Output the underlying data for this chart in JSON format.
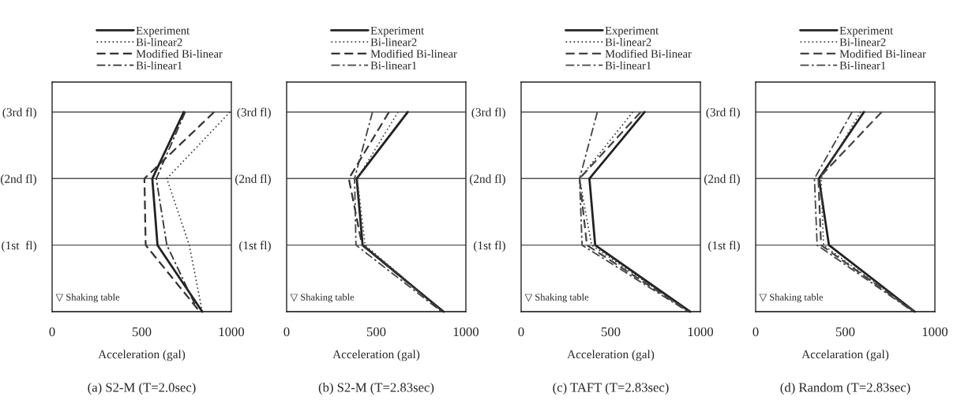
{
  "chart_data": [
    {
      "type": "line",
      "orientation": "horizontal",
      "title": "(a) S2-M (T=2.0sec)",
      "xlabel": "Acceleration (gal)",
      "categories": [
        "(3rd fl)",
        "(2nd fl)",
        "(1st  fl)",
        null
      ],
      "xlim": [
        0,
        1000
      ],
      "xticks": [
        0,
        500,
        1000
      ],
      "grid": "y",
      "legend": "top",
      "annotations": [
        "▽ Shaking table"
      ],
      "series": [
        {
          "name": "Experiment",
          "color": "#222222",
          "line_style": "solid",
          "values": [
            735,
            559,
            588,
            838
          ]
        },
        {
          "name": "Bi-linear2",
          "color": "#333333",
          "line_style": "dotted",
          "values": [
            993,
            640,
            765,
            838
          ]
        },
        {
          "name": "Modified Bi-linear",
          "color": "#333333",
          "line_style": "dashed",
          "values": [
            904,
            515,
            522,
            824
          ]
        },
        {
          "name": "Bi-linear1",
          "color": "#333333",
          "line_style": "dashdot",
          "values": [
            743,
            581,
            640,
            816
          ]
        }
      ]
    },
    {
      "type": "line",
      "orientation": "horizontal",
      "title": "(b) S2-M (T=2.83sec)",
      "xlabel": "Acceleration (gal)",
      "categories": [
        "(3rd fl)",
        "(2nd fl)",
        "(1st fl)",
        null
      ],
      "xlim": [
        0,
        1000
      ],
      "xticks": [
        0,
        500,
        1000
      ],
      "grid": "y",
      "legend": "top",
      "annotations": [
        "▽ Shaking table"
      ],
      "series": [
        {
          "name": "Experiment",
          "color": "#222222",
          "line_style": "solid",
          "values": [
            676,
            391,
            424,
            876
          ]
        },
        {
          "name": "Bi-linear2",
          "color": "#444444",
          "line_style": "dotted",
          "values": [
            622,
            394,
            438,
            872
          ]
        },
        {
          "name": "Modified Bi-linear",
          "color": "#333333",
          "line_style": "dashed",
          "values": [
            571,
            347,
            421,
            872
          ]
        },
        {
          "name": "Bi-linear1",
          "color": "#444444",
          "line_style": "dashdot",
          "values": [
            479,
            379,
            387,
            865
          ]
        }
      ]
    },
    {
      "type": "line",
      "orientation": "horizontal",
      "title": "(c) TAFT (T=2.83sec)",
      "xlabel": "Acceleration (gal)",
      "categories": [
        "(3rd fl)",
        "(2nd fl)",
        "(1st fl)",
        null
      ],
      "xlim": [
        0,
        1000
      ],
      "xticks": [
        0,
        500,
        1000
      ],
      "grid": "y",
      "legend": "top",
      "annotations": [
        "▽ Shaking table"
      ],
      "series": [
        {
          "name": "Experiment",
          "color": "#222222",
          "line_style": "solid",
          "values": [
            689,
            381,
            413,
            943
          ]
        },
        {
          "name": "Bi-linear2",
          "color": "#333333",
          "line_style": "dotted",
          "values": [
            623,
            326,
            393,
            938
          ]
        },
        {
          "name": "Modified Bi-linear",
          "color": "#444444",
          "line_style": "dashed",
          "values": [
            667,
            326,
            367,
            938
          ]
        },
        {
          "name": "Bi-linear1",
          "color": "#444444",
          "line_style": "dashdot",
          "values": [
            425,
            326,
            340,
            931
          ]
        }
      ]
    },
    {
      "type": "line",
      "orientation": "horizontal",
      "title": "(d) Random (T=2.83sec)",
      "xlabel": "Accelaration (gal)",
      "categories": [
        "(3rd fl)",
        "(2nd fl)",
        "(1st fl)",
        null
      ],
      "xlim": [
        0,
        1000
      ],
      "xticks": [
        0,
        500,
        1000
      ],
      "grid": "y",
      "legend": "top",
      "annotations": [
        "▽ Shaking table"
      ],
      "series": [
        {
          "name": "Experiment",
          "color": "#222222",
          "line_style": "solid",
          "values": [
            604,
            353,
            409,
            888
          ]
        },
        {
          "name": "Bi-linear2",
          "color": "#444444",
          "line_style": "dotted",
          "values": [
            585,
            365,
            379,
            885
          ]
        },
        {
          "name": "Modified Bi-linear",
          "color": "#444444",
          "line_style": "dashed",
          "values": [
            703,
            350,
            365,
            885
          ]
        },
        {
          "name": "Bi-linear1",
          "color": "#444444",
          "line_style": "dashdot",
          "values": [
            538,
            328,
            343,
            879
          ]
        }
      ]
    }
  ]
}
